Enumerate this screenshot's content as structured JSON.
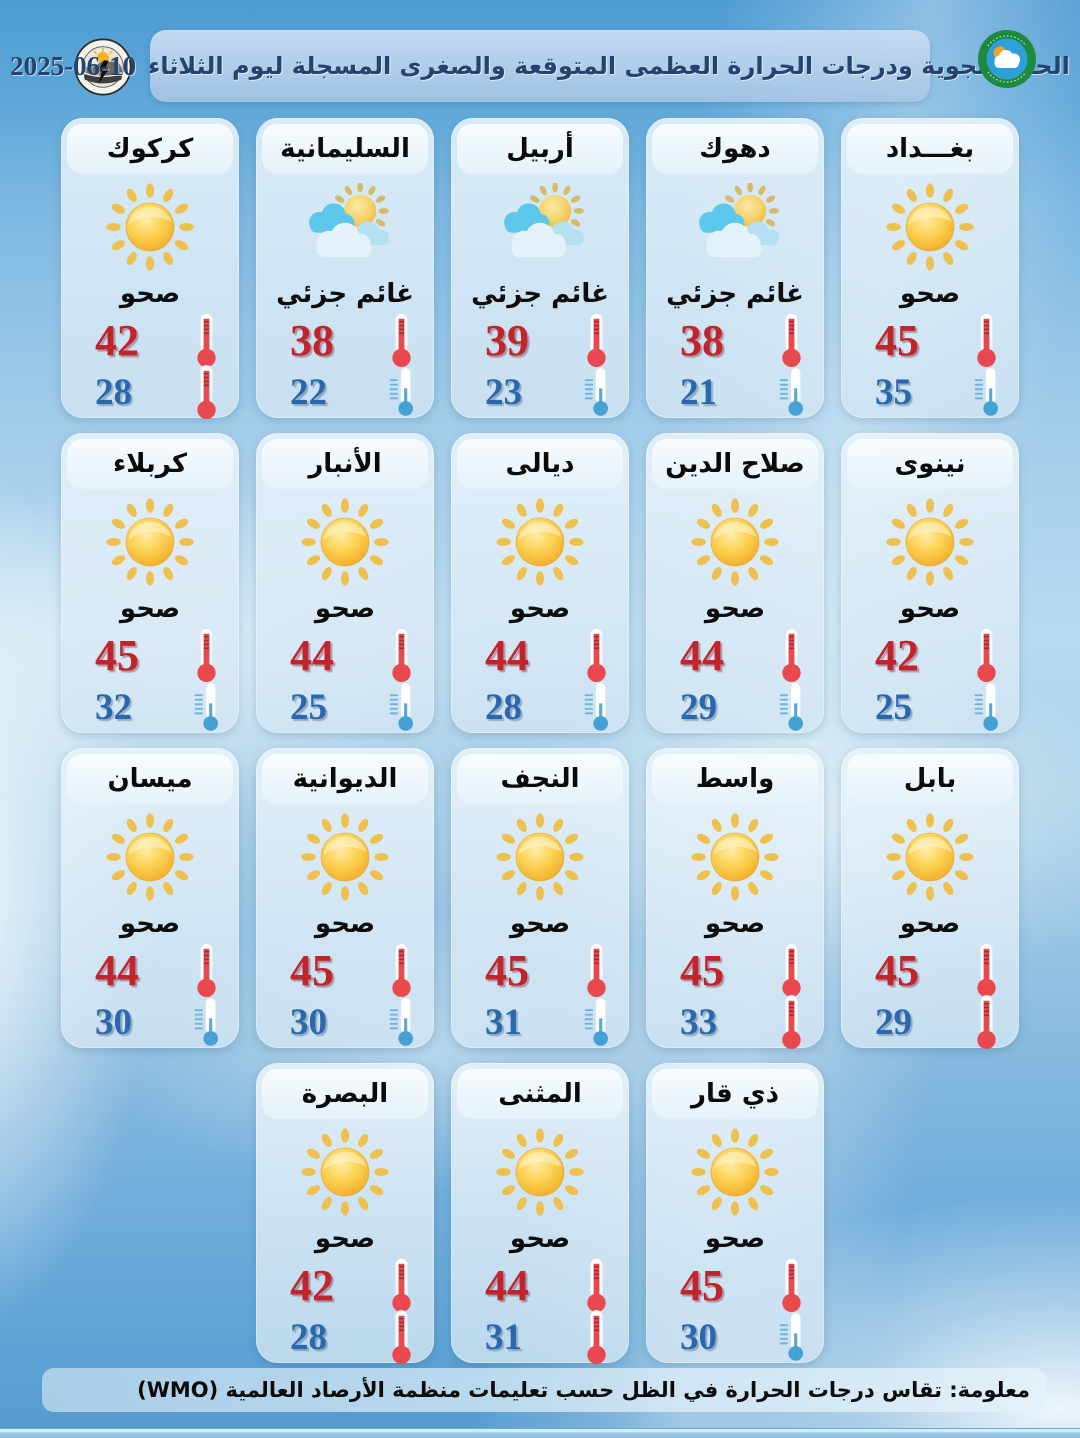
{
  "header": {
    "title": "الحالة الجوية ودرجات الحرارة العظمى المتوقعة والصغرى المسجلة ليوم الثلاثاء",
    "date": "2025-06-10",
    "logo_left": "weather-forecasting-dept-logo",
    "logo_right": "iraqi-meteorological-organization-logo"
  },
  "footer": {
    "note": "معلومة: تقاس درجات الحرارة في الظل حسب تعليمات منظمة الأرصاد العالمية (WMO)"
  },
  "colors": {
    "max_temp": "#c2242b",
    "min_temp": "#2a67ac",
    "sun": "#f5b42c",
    "cloud_blue": "#5ec7ec",
    "card_bg": "#e0eef9"
  },
  "icons": {
    "sunny": "sun-icon",
    "partly_cloudy": "sun-behind-clouds-icon",
    "max": "thermometer-hot-icon",
    "min": "thermometer-cold-icon"
  },
  "rows": [
    [
      {
        "name": "بغـــداد",
        "condition": "صحو",
        "icon": "sunny",
        "max": "45",
        "min": "35",
        "min_style": "cold"
      },
      {
        "name": "دهوك",
        "condition": "غائم جزئي",
        "icon": "partly",
        "max": "38",
        "min": "21",
        "min_style": "cold"
      },
      {
        "name": "أربيل",
        "condition": "غائم جزئي",
        "icon": "partly",
        "max": "39",
        "min": "23",
        "min_style": "cold"
      },
      {
        "name": "السليمانية",
        "condition": "غائم جزئي",
        "icon": "partly",
        "max": "38",
        "min": "22",
        "min_style": "cold"
      },
      {
        "name": "كركوك",
        "condition": "صحو",
        "icon": "sunny",
        "max": "42",
        "min": "28",
        "min_style": "hot"
      }
    ],
    [
      {
        "name": "نينوى",
        "condition": "صحو",
        "icon": "sunny",
        "max": "42",
        "min": "25",
        "min_style": "cold"
      },
      {
        "name": "صلاح الدين",
        "condition": "صحو",
        "icon": "sunny",
        "max": "44",
        "min": "29",
        "min_style": "cold"
      },
      {
        "name": "ديالى",
        "condition": "صحو",
        "icon": "sunny",
        "max": "44",
        "min": "28",
        "min_style": "cold"
      },
      {
        "name": "الأنبار",
        "condition": "صحو",
        "icon": "sunny",
        "max": "44",
        "min": "25",
        "min_style": "cold"
      },
      {
        "name": "كربلاء",
        "condition": "صحو",
        "icon": "sunny",
        "max": "45",
        "min": "32",
        "min_style": "cold"
      }
    ],
    [
      {
        "name": "بابل",
        "condition": "صحو",
        "icon": "sunny",
        "max": "45",
        "min": "29",
        "min_style": "hot"
      },
      {
        "name": "واسط",
        "condition": "صحو",
        "icon": "sunny",
        "max": "45",
        "min": "33",
        "min_style": "hot"
      },
      {
        "name": "النجف",
        "condition": "صحو",
        "icon": "sunny",
        "max": "45",
        "min": "31",
        "min_style": "cold"
      },
      {
        "name": "الديوانية",
        "condition": "صحو",
        "icon": "sunny",
        "max": "45",
        "min": "30",
        "min_style": "cold"
      },
      {
        "name": "ميسان",
        "condition": "صحو",
        "icon": "sunny",
        "max": "44",
        "min": "30",
        "min_style": "cold"
      }
    ],
    [
      {
        "name": "ذي قار",
        "condition": "صحو",
        "icon": "sunny",
        "max": "45",
        "min": "30",
        "min_style": "cold"
      },
      {
        "name": "المثنى",
        "condition": "صحو",
        "icon": "sunny",
        "max": "44",
        "min": "31",
        "min_style": "hot"
      },
      {
        "name": "البصرة",
        "condition": "صحو",
        "icon": "sunny",
        "max": "42",
        "min": "28",
        "min_style": "hot"
      }
    ]
  ]
}
